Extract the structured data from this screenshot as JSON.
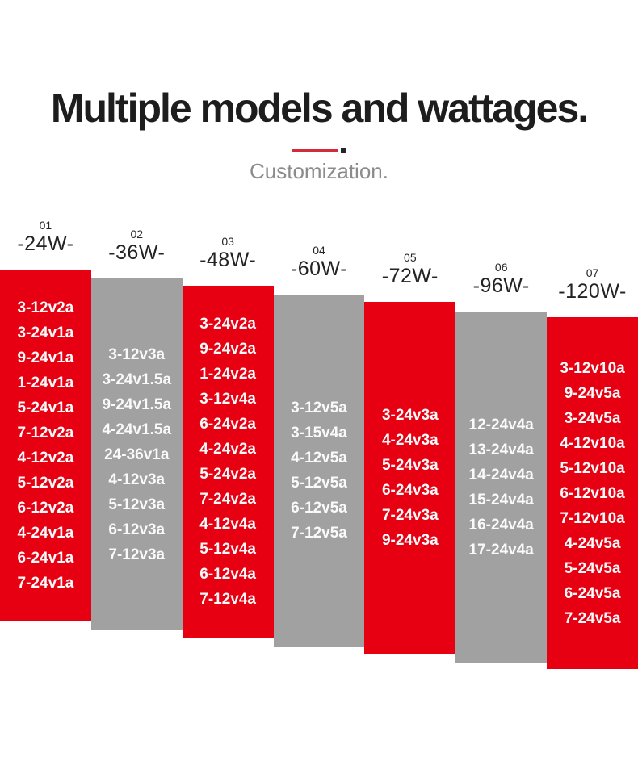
{
  "header": {
    "title": "Multiple models and wattages.",
    "subtitle": "Customization."
  },
  "colors": {
    "red": "#e60012",
    "gray": "#a1a1a1",
    "divider_line": "#d22b3a",
    "divider_dot": "#26232a"
  },
  "columns": [
    {
      "index": "01",
      "wattage": "-24W-",
      "color": "red",
      "models": [
        "3-12v2a",
        "3-24v1a",
        "9-24v1a",
        "1-24v1a",
        "5-24v1a",
        "7-12v2a",
        "4-12v2a",
        "5-12v2a",
        "6-12v2a",
        "4-24v1a",
        "6-24v1a",
        "7-24v1a"
      ]
    },
    {
      "index": "02",
      "wattage": "-36W-",
      "color": "gray",
      "models": [
        "3-12v3a",
        "3-24v1.5a",
        "9-24v1.5a",
        "4-24v1.5a",
        "24-36v1a",
        "4-12v3a",
        "5-12v3a",
        "6-12v3a",
        "7-12v3a"
      ]
    },
    {
      "index": "03",
      "wattage": "-48W-",
      "color": "red",
      "models": [
        "3-24v2a",
        "9-24v2a",
        "1-24v2a",
        "3-12v4a",
        "6-24v2a",
        "4-24v2a",
        "5-24v2a",
        "7-24v2a",
        "4-12v4a",
        "5-12v4a",
        "6-12v4a",
        "7-12v4a"
      ]
    },
    {
      "index": "04",
      "wattage": "-60W-",
      "color": "gray",
      "models": [
        "3-12v5a",
        "3-15v4a",
        "4-12v5a",
        "5-12v5a",
        "6-12v5a",
        "7-12v5a"
      ]
    },
    {
      "index": "05",
      "wattage": "-72W-",
      "color": "red",
      "models": [
        "3-24v3a",
        "4-24v3a",
        "5-24v3a",
        "6-24v3a",
        "7-24v3a",
        "9-24v3a"
      ]
    },
    {
      "index": "06",
      "wattage": "-96W-",
      "color": "gray",
      "models": [
        "12-24v4a",
        "13-24v4a",
        "14-24v4a",
        "15-24v4a",
        "16-24v4a",
        "17-24v4a"
      ]
    },
    {
      "index": "07",
      "wattage": "-120W-",
      "color": "red",
      "models": [
        "3-12v10a",
        "9-24v5a",
        "3-24v5a",
        "4-12v10a",
        "5-12v10a",
        "6-12v10a",
        "7-12v10a",
        "4-24v5a",
        "5-24v5a",
        "6-24v5a",
        "7-24v5a"
      ]
    }
  ]
}
